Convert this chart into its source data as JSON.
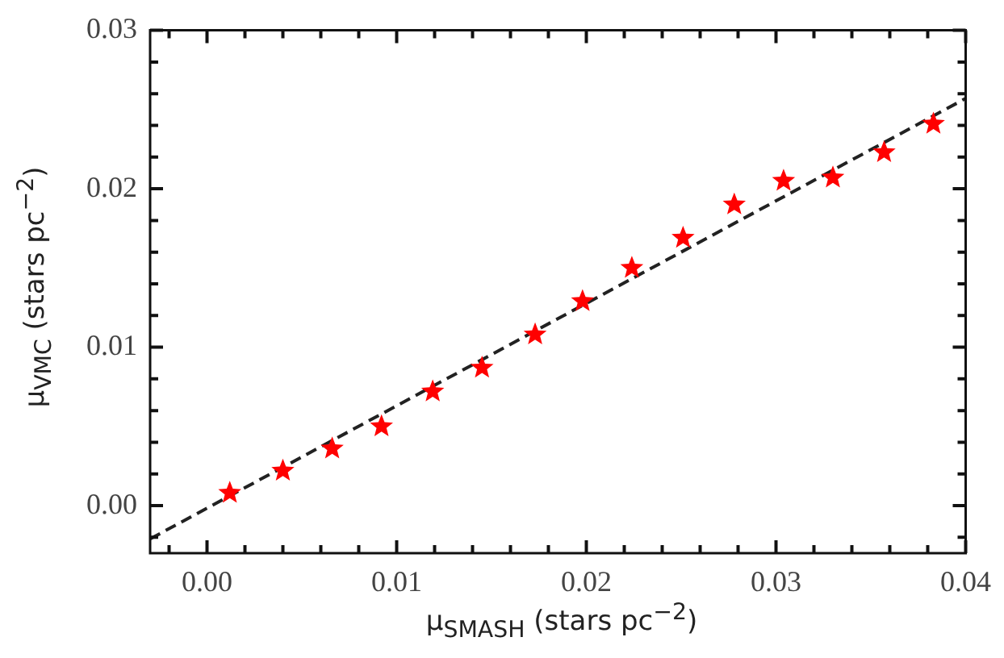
{
  "chart_data": {
    "type": "scatter",
    "xlabel": "μ$_{SMASH}$ (stars pc$^{−2}$)",
    "ylabel": "μ$_{VMC}$ (stars pc$^{−2}$)",
    "xlim": [
      -0.003,
      0.04
    ],
    "ylim": [
      -0.003,
      0.03
    ],
    "xticks": [
      {
        "value": -0.002,
        "label": null
      },
      "0.00",
      {
        "value": 0.002,
        "label": null
      },
      {
        "value": 0.004,
        "label": null
      },
      {
        "value": 0.006,
        "label": null
      },
      {
        "value": 0.008,
        "label": null
      },
      {
        "value": 0.01,
        "label": "0.01"
      },
      {
        "value": 0.012,
        "label": null
      },
      {
        "value": 0.014,
        "label": null
      },
      {
        "value": 0.016,
        "label": null
      },
      {
        "value": 0.018,
        "label": null
      },
      {
        "value": 0.02,
        "label": "0.02"
      },
      {
        "value": 0.022,
        "label": null
      },
      {
        "value": 0.024,
        "label": null
      },
      {
        "value": 0.026,
        "label": null
      },
      {
        "value": 0.028,
        "label": null
      },
      {
        "value": 0.03,
        "label": "0.03"
      },
      {
        "value": 0.032,
        "label": null
      },
      {
        "value": 0.034,
        "label": null
      },
      {
        "value": 0.036,
        "label": null
      },
      {
        "value": 0.038,
        "label": null
      },
      {
        "value": 0.04,
        "label": "0.04"
      }
    ],
    "yticks": [
      {
        "value": -0.002,
        "label": null
      },
      {
        "value": 0,
        "label": "0.00"
      },
      {
        "value": 0.002,
        "label": null
      },
      {
        "value": 0.004,
        "label": null
      },
      {
        "value": 0.006,
        "label": null
      },
      {
        "value": 0.008,
        "label": null
      },
      {
        "value": 0.01,
        "label": "0.01"
      },
      {
        "value": 0.012,
        "label": null
      },
      {
        "value": 0.014,
        "label": null
      },
      {
        "value": 0.016,
        "label": null
      },
      {
        "value": 0.018,
        "label": null
      },
      {
        "value": 0.02,
        "label": "0.02"
      },
      {
        "value": 0.022,
        "label": null
      },
      {
        "value": 0.024,
        "label": null
      },
      {
        "value": 0.026,
        "label": null
      },
      {
        "value": 0.028,
        "label": null
      },
      {
        "value": 0.03,
        "label": "0.03"
      }
    ],
    "grid": false,
    "legend": false,
    "series": [
      {
        "color": "#ff0000",
        "marker": "star",
        "x": [
          0.0012,
          0.004,
          0.0066,
          0.0092,
          0.0119,
          0.0145,
          0.0173,
          0.0198,
          0.0224,
          0.0251,
          0.0278,
          0.0304,
          0.033,
          0.0357,
          0.0383
        ],
        "values": [
          0.0008,
          0.0022,
          0.0036,
          0.005,
          0.0072,
          0.0087,
          0.0108,
          0.0129,
          0.015,
          0.0169,
          0.019,
          0.0205,
          0.0207,
          0.0223,
          0.0241
        ]
      },
      {
        "type": "line",
        "color": "#222222",
        "marker": "none",
        "line_style": "dashed",
        "x": [
          -0.003,
          0.04
        ],
        "values": [
          -0.0021,
          0.0257
        ]
      }
    ]
  }
}
